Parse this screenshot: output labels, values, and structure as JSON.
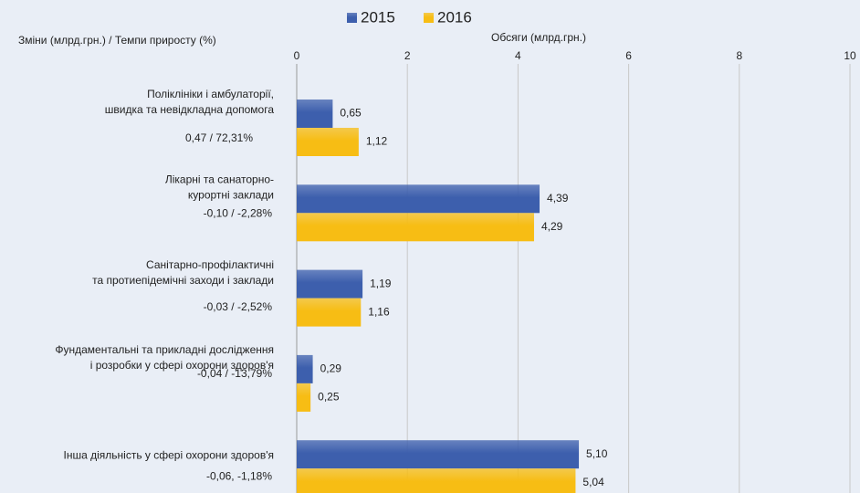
{
  "chart_data": {
    "type": "hbar",
    "y_axis_label": "Зміни  (млрд.грн.) / Темпи приросту (%)",
    "x_axis_label": "Обсяги (млрд.грн.)",
    "categories": [
      [
        "Поліклініки і амбулаторії,",
        "швидка та невідкладна допомога"
      ],
      [
        "Лікарні та санаторно-",
        "курортні заклади"
      ],
      [
        "Санітарно-профілактичні",
        "та протиепідемічні заходи і заклади"
      ],
      [
        "Фундаментальні та прикладні дослідження",
        "і розробки у сфері охорони здоров'я"
      ],
      [
        "Інша діяльність у сфері охорони здоров'я"
      ]
    ],
    "changes": [
      "0,47 / 72,31%",
      "-0,10 / -2,28%",
      "-0,03 / -2,52%",
      "-0,04 / -13,79%",
      "-0,06, -1,18%"
    ],
    "change_colors": [
      "#2aa84a",
      "#e8303a",
      "#e8303a",
      "#e8303a",
      "#e8303a"
    ],
    "series": [
      {
        "name": "2015",
        "color": "#3d5fad",
        "values": [
          0.65,
          4.39,
          1.19,
          0.29,
          5.1
        ],
        "value_labels": [
          "0,65",
          "4,39",
          "1,19",
          "0,29",
          "5,10"
        ]
      },
      {
        "name": "2016",
        "color": "#f7bd14",
        "values": [
          1.12,
          4.29,
          1.16,
          0.25,
          5.04
        ],
        "value_labels": [
          "1,12",
          "4,29",
          "1,16",
          "0,25",
          "5,04"
        ]
      }
    ],
    "xlim": [
      0,
      10
    ],
    "xticks": [
      0,
      2,
      4,
      6,
      8,
      10
    ],
    "grid": true
  }
}
